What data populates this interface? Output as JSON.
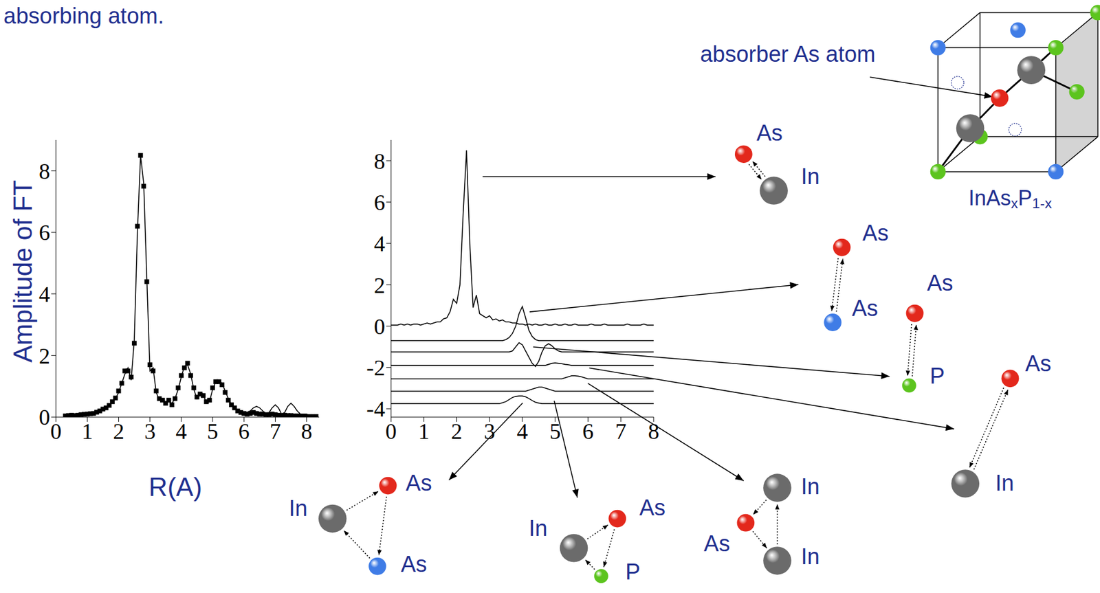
{
  "chart_data": [
    {
      "type": "line",
      "x_label": "R(A)",
      "y_label": "Amplitude of FT",
      "xlim": [
        0,
        8.4
      ],
      "ylim": [
        0,
        9
      ],
      "xticks": [
        0,
        1,
        2,
        3,
        4,
        5,
        6,
        7,
        8
      ],
      "yticks": [
        0,
        2,
        4,
        6,
        8
      ],
      "x": [
        0.3,
        0.4,
        0.5,
        0.6,
        0.7,
        0.8,
        0.9,
        1,
        1.1,
        1.2,
        1.3,
        1.4,
        1.5,
        1.6,
        1.7,
        1.8,
        1.9,
        2,
        2.1,
        2.2,
        2.3,
        2.4,
        2.5,
        2.6,
        2.7,
        2.8,
        2.9,
        3,
        3.1,
        3.2,
        3.3,
        3.4,
        3.5,
        3.6,
        3.7,
        3.8,
        3.9,
        4,
        4.1,
        4.2,
        4.3,
        4.4,
        4.5,
        4.6,
        4.7,
        4.8,
        4.9,
        5,
        5.1,
        5.2,
        5.3,
        5.4,
        5.5,
        5.6,
        5.7,
        5.8,
        5.9,
        6,
        6.1,
        6.2,
        6.3,
        6.4,
        6.5,
        6.6,
        6.7,
        6.8,
        6.9,
        7,
        7.1,
        7.2,
        7.3,
        7.4,
        7.5,
        7.6,
        7.7,
        7.8,
        7.9,
        8,
        8.1,
        8.2,
        8.3
      ],
      "series": [
        {
          "type": "line",
          "color": "#000000",
          "values": [
            0.05,
            0.05,
            0.05,
            0.05,
            0.05,
            0.08,
            0.08,
            0.1,
            0.1,
            0.12,
            0.15,
            0.2,
            0.25,
            0.3,
            0.4,
            0.5,
            0.6,
            0.8,
            1.1,
            1.4,
            1.6,
            1.2,
            2.5,
            6.0,
            8.5,
            7.6,
            4.5,
            1.5,
            1.6,
            0.8,
            0.55,
            0.6,
            0.45,
            0.5,
            0.45,
            0.6,
            0.9,
            1.3,
            1.65,
            1.7,
            1.4,
            0.9,
            0.6,
            0.8,
            0.75,
            0.45,
            0.5,
            0.9,
            1.15,
            1.2,
            1.1,
            0.85,
            0.6,
            0.4,
            0.3,
            0.2,
            0.15,
            0.15,
            0.15,
            0.2,
            0.3,
            0.35,
            0.3,
            0.2,
            0.1,
            0.15,
            0.3,
            0.4,
            0.3,
            0.1,
            0.15,
            0.35,
            0.45,
            0.35,
            0.2,
            0.1,
            0.1,
            0.1,
            0.05,
            0.05,
            0.05
          ]
        },
        {
          "type": "scatter",
          "marker": "square",
          "color": "#000000",
          "values": [
            0.04,
            0.05,
            0.06,
            0.05,
            0.06,
            0.08,
            0.09,
            0.1,
            0.11,
            0.12,
            0.16,
            0.2,
            0.26,
            0.3,
            0.38,
            0.5,
            0.62,
            0.85,
            1.1,
            1.5,
            1.5,
            1.3,
            2.4,
            6.2,
            8.5,
            7.5,
            4.4,
            1.7,
            1.5,
            0.85,
            0.6,
            0.55,
            0.45,
            0.55,
            0.4,
            0.6,
            0.95,
            1.35,
            1.6,
            1.75,
            1.35,
            0.95,
            0.65,
            0.75,
            0.7,
            0.5,
            0.55,
            0.95,
            1.15,
            1.15,
            1.05,
            0.8,
            0.55,
            0.4,
            0.3,
            0.2,
            0.15,
            0.12,
            0.1,
            0.12,
            0.15,
            0.12,
            0.1,
            0.1,
            0.08,
            0.08,
            0.1,
            0.08,
            0.06,
            0.05,
            0.06,
            0.05,
            0.05,
            0.04,
            0.04,
            0.03,
            0.03,
            0.02,
            0.02,
            0.02,
            0.02
          ]
        }
      ]
    },
    {
      "type": "line",
      "xlim": [
        0,
        8
      ],
      "ylim": [
        -4.4,
        9
      ],
      "xticks": [
        0,
        1,
        2,
        3,
        4,
        5,
        6,
        7,
        8
      ],
      "yticks": [
        -4,
        -2,
        0,
        2,
        4,
        6,
        8
      ],
      "x": [
        0,
        0.1,
        0.2,
        0.3,
        0.4,
        0.5,
        0.6,
        0.7,
        0.8,
        0.9,
        1,
        1.1,
        1.2,
        1.3,
        1.4,
        1.5,
        1.6,
        1.7,
        1.8,
        1.9,
        2,
        2.1,
        2.2,
        2.3,
        2.4,
        2.5,
        2.6,
        2.7,
        2.8,
        2.9,
        3,
        3.1,
        3.2,
        3.3,
        3.4,
        3.5,
        3.6,
        3.7,
        3.8,
        3.9,
        4,
        4.1,
        4.2,
        4.3,
        4.4,
        4.5,
        4.6,
        4.7,
        4.8,
        4.9,
        5,
        5.1,
        5.2,
        5.3,
        5.4,
        5.5,
        5.6,
        5.7,
        5.8,
        5.9,
        6,
        6.1,
        6.2,
        6.3,
        6.4,
        6.5,
        6.6,
        6.7,
        6.8,
        6.9,
        7,
        7.1,
        7.2,
        7.3,
        7.4,
        7.5,
        7.6,
        7.7,
        7.8,
        7.9,
        8
      ],
      "series": [
        {
          "color": "#000000",
          "values": [
            0.05,
            0.05,
            0.05,
            0.1,
            0.05,
            0.1,
            0.05,
            0.1,
            0.1,
            0.05,
            0.1,
            0.15,
            0.1,
            0.15,
            0.2,
            0.2,
            0.35,
            0.4,
            0.7,
            1.3,
            1.1,
            2.0,
            5.5,
            8.5,
            4.0,
            0.9,
            1.5,
            0.6,
            0.5,
            0.4,
            0.5,
            0.3,
            0.35,
            0.25,
            0.3,
            0.2,
            0.2,
            0.15,
            0.15,
            0.1,
            0.1,
            0.05,
            0.1,
            0.05,
            0.1,
            0.05,
            0.05,
            0.1,
            0.05,
            0.05,
            0.1,
            0.05,
            0.05,
            0.1,
            0.05,
            0.05,
            0.1,
            0.05,
            0.05,
            0.05,
            0.05,
            0.1,
            0.05,
            0.05,
            0.05,
            0.1,
            0.05,
            0.05,
            0.05,
            0.05,
            0.05,
            0.05,
            0.1,
            0.05,
            0.05,
            0.05,
            0.05,
            0.1,
            0.05,
            0.05,
            0.05
          ]
        },
        {
          "color": "#000000",
          "values": [
            -0.7,
            -0.7,
            -0.7,
            -0.7,
            -0.7,
            -0.7,
            -0.7,
            -0.7,
            -0.7,
            -0.7,
            -0.7,
            -0.7,
            -0.7,
            -0.7,
            -0.7,
            -0.7,
            -0.7,
            -0.7,
            -0.7,
            -0.7,
            -0.7,
            -0.7,
            -0.7,
            -0.7,
            -0.7,
            -0.7,
            -0.7,
            -0.7,
            -0.7,
            -0.7,
            -0.7,
            -0.7,
            -0.7,
            -0.7,
            -0.7,
            -0.65,
            -0.55,
            -0.35,
            0.0,
            0.6,
            0.95,
            0.4,
            -0.2,
            -0.5,
            -0.65,
            -0.7,
            -0.7,
            -0.7,
            -0.7,
            -0.7,
            -0.7,
            -0.7,
            -0.7,
            -0.7,
            -0.7,
            -0.7,
            -0.7,
            -0.7,
            -0.7,
            -0.7,
            -0.7,
            -0.7,
            -0.7,
            -0.7,
            -0.7,
            -0.7,
            -0.7,
            -0.7,
            -0.7,
            -0.7,
            -0.7,
            -0.7,
            -0.7,
            -0.7,
            -0.7,
            -0.7,
            -0.7,
            -0.7,
            -0.7,
            -0.7,
            -0.7
          ]
        },
        {
          "color": "#000000",
          "values": [
            -1.25,
            -1.25,
            -1.25,
            -1.25,
            -1.25,
            -1.25,
            -1.25,
            -1.25,
            -1.25,
            -1.25,
            -1.25,
            -1.25,
            -1.25,
            -1.25,
            -1.25,
            -1.25,
            -1.25,
            -1.25,
            -1.25,
            -1.25,
            -1.25,
            -1.25,
            -1.25,
            -1.25,
            -1.25,
            -1.25,
            -1.25,
            -1.25,
            -1.25,
            -1.25,
            -1.25,
            -1.25,
            -1.25,
            -1.25,
            -1.25,
            -1.25,
            -1.25,
            -1.2,
            -1.0,
            -0.8,
            -0.9,
            -1.2,
            -1.5,
            -1.8,
            -1.95,
            -1.7,
            -1.25,
            -0.95,
            -0.85,
            -0.95,
            -1.1,
            -1.2,
            -1.25,
            -1.25,
            -1.25,
            -1.25,
            -1.25,
            -1.25,
            -1.25,
            -1.25,
            -1.25,
            -1.25,
            -1.25,
            -1.25,
            -1.25,
            -1.25,
            -1.25,
            -1.25,
            -1.25,
            -1.25,
            -1.25,
            -1.25,
            -1.25,
            -1.25,
            -1.25,
            -1.25,
            -1.25,
            -1.25,
            -1.25,
            -1.25,
            -1.25
          ]
        },
        {
          "color": "#000000",
          "values": [
            -1.9,
            -1.9,
            -1.9,
            -1.9,
            -1.9,
            -1.9,
            -1.9,
            -1.9,
            -1.9,
            -1.9,
            -1.9,
            -1.9,
            -1.9,
            -1.9,
            -1.9,
            -1.9,
            -1.9,
            -1.9,
            -1.9,
            -1.9,
            -1.9,
            -1.9,
            -1.9,
            -1.9,
            -1.9,
            -1.9,
            -1.9,
            -1.9,
            -1.9,
            -1.9,
            -1.9,
            -1.9,
            -1.9,
            -1.9,
            -1.9,
            -1.9,
            -1.9,
            -1.9,
            -1.9,
            -1.9,
            -1.9,
            -1.9,
            -1.9,
            -1.9,
            -1.9,
            -1.9,
            -1.9,
            -1.9,
            -1.85,
            -1.8,
            -1.78,
            -1.8,
            -1.82,
            -1.85,
            -1.87,
            -1.9,
            -1.9,
            -1.9,
            -1.9,
            -1.9,
            -1.9,
            -1.9,
            -1.9,
            -1.9,
            -1.9,
            -1.9,
            -1.9,
            -1.9,
            -1.9,
            -1.9,
            -1.9,
            -1.9,
            -1.9,
            -1.9,
            -1.9,
            -1.9,
            -1.9,
            -1.9,
            -1.9,
            -1.9,
            -1.9
          ]
        },
        {
          "color": "#000000",
          "values": [
            -2.55,
            -2.55,
            -2.55,
            -2.55,
            -2.55,
            -2.55,
            -2.55,
            -2.55,
            -2.55,
            -2.55,
            -2.55,
            -2.55,
            -2.55,
            -2.55,
            -2.55,
            -2.55,
            -2.55,
            -2.55,
            -2.55,
            -2.55,
            -2.55,
            -2.55,
            -2.55,
            -2.55,
            -2.55,
            -2.55,
            -2.55,
            -2.55,
            -2.55,
            -2.55,
            -2.55,
            -2.55,
            -2.55,
            -2.55,
            -2.55,
            -2.55,
            -2.55,
            -2.55,
            -2.55,
            -2.55,
            -2.55,
            -2.55,
            -2.55,
            -2.55,
            -2.55,
            -2.55,
            -2.55,
            -2.55,
            -2.55,
            -2.55,
            -2.55,
            -2.55,
            -2.55,
            -2.5,
            -2.45,
            -2.4,
            -2.4,
            -2.42,
            -2.45,
            -2.5,
            -2.55,
            -2.55,
            -2.55,
            -2.55,
            -2.55,
            -2.55,
            -2.55,
            -2.55,
            -2.55,
            -2.55,
            -2.55,
            -2.55,
            -2.55,
            -2.55,
            -2.55,
            -2.55,
            -2.55,
            -2.55,
            -2.55,
            -2.55,
            -2.55
          ]
        },
        {
          "color": "#000000",
          "values": [
            -3.15,
            -3.15,
            -3.15,
            -3.15,
            -3.15,
            -3.15,
            -3.15,
            -3.15,
            -3.15,
            -3.15,
            -3.15,
            -3.15,
            -3.15,
            -3.15,
            -3.15,
            -3.15,
            -3.15,
            -3.15,
            -3.15,
            -3.15,
            -3.15,
            -3.15,
            -3.15,
            -3.15,
            -3.15,
            -3.15,
            -3.15,
            -3.15,
            -3.15,
            -3.15,
            -3.15,
            -3.15,
            -3.15,
            -3.15,
            -3.15,
            -3.15,
            -3.15,
            -3.15,
            -3.15,
            -3.15,
            -3.15,
            -3.15,
            -3.1,
            -3.05,
            -3.0,
            -2.95,
            -2.95,
            -3.0,
            -3.05,
            -3.1,
            -3.15,
            -3.15,
            -3.15,
            -3.15,
            -3.15,
            -3.15,
            -3.15,
            -3.15,
            -3.15,
            -3.15,
            -3.15,
            -3.15,
            -3.15,
            -3.15,
            -3.15,
            -3.15,
            -3.15,
            -3.15,
            -3.15,
            -3.15,
            -3.15,
            -3.15,
            -3.15,
            -3.15,
            -3.15,
            -3.15,
            -3.15,
            -3.15,
            -3.15,
            -3.15,
            -3.15
          ]
        },
        {
          "color": "#000000",
          "values": [
            -3.75,
            -3.75,
            -3.75,
            -3.75,
            -3.75,
            -3.75,
            -3.75,
            -3.75,
            -3.75,
            -3.75,
            -3.75,
            -3.75,
            -3.75,
            -3.75,
            -3.75,
            -3.75,
            -3.75,
            -3.75,
            -3.75,
            -3.75,
            -3.75,
            -3.75,
            -3.75,
            -3.75,
            -3.75,
            -3.75,
            -3.75,
            -3.75,
            -3.75,
            -3.75,
            -3.75,
            -3.75,
            -3.75,
            -3.75,
            -3.7,
            -3.65,
            -3.55,
            -3.45,
            -3.4,
            -3.38,
            -3.38,
            -3.42,
            -3.5,
            -3.6,
            -3.68,
            -3.72,
            -3.75,
            -3.75,
            -3.75,
            -3.75,
            -3.75,
            -3.75,
            -3.75,
            -3.75,
            -3.75,
            -3.75,
            -3.75,
            -3.75,
            -3.75,
            -3.75,
            -3.75,
            -3.75,
            -3.75,
            -3.75,
            -3.75,
            -3.75,
            -3.75,
            -3.75,
            -3.75,
            -3.75,
            -3.75,
            -3.75,
            -3.75,
            -3.75,
            -3.75,
            -3.75,
            -3.75,
            -3.75,
            -3.75,
            -3.75,
            -3.75
          ]
        }
      ]
    }
  ],
  "diagram": {
    "caption": "absorbing atom.",
    "absorber_label": "absorber As atom",
    "formula": {
      "base": [
        "InAs",
        "P"
      ],
      "subscripts": [
        "x",
        "1-x"
      ]
    },
    "paths": [
      {
        "atoms": [
          {
            "label": "As",
            "color": "#e3281c"
          },
          {
            "label": "In",
            "color": "#6b6b6b"
          }
        ]
      },
      {
        "atoms": [
          {
            "label": "As",
            "color": "#e3281c"
          },
          {
            "label": "As",
            "color": "#3f7ce6"
          }
        ]
      },
      {
        "atoms": [
          {
            "label": "As",
            "color": "#e3281c"
          },
          {
            "label": "P",
            "color": "#5cc41e"
          }
        ]
      },
      {
        "atoms": [
          {
            "label": "As",
            "color": "#e3281c"
          },
          {
            "label": "In",
            "color": "#6b6b6b"
          }
        ]
      },
      {
        "atoms": [
          {
            "label": "As",
            "color": "#e3281c"
          },
          {
            "label": "In",
            "color": "#6b6b6b"
          },
          {
            "label": "In",
            "color": "#6b6b6b"
          }
        ]
      },
      {
        "atoms": [
          {
            "label": "As",
            "color": "#e3281c"
          },
          {
            "label": "In",
            "color": "#6b6b6b"
          },
          {
            "label": "P",
            "color": "#5cc41e"
          }
        ]
      },
      {
        "atoms": [
          {
            "label": "As",
            "color": "#e3281c"
          },
          {
            "label": "In",
            "color": "#6b6b6b"
          },
          {
            "label": "As",
            "color": "#3f7ce6"
          }
        ]
      }
    ]
  }
}
